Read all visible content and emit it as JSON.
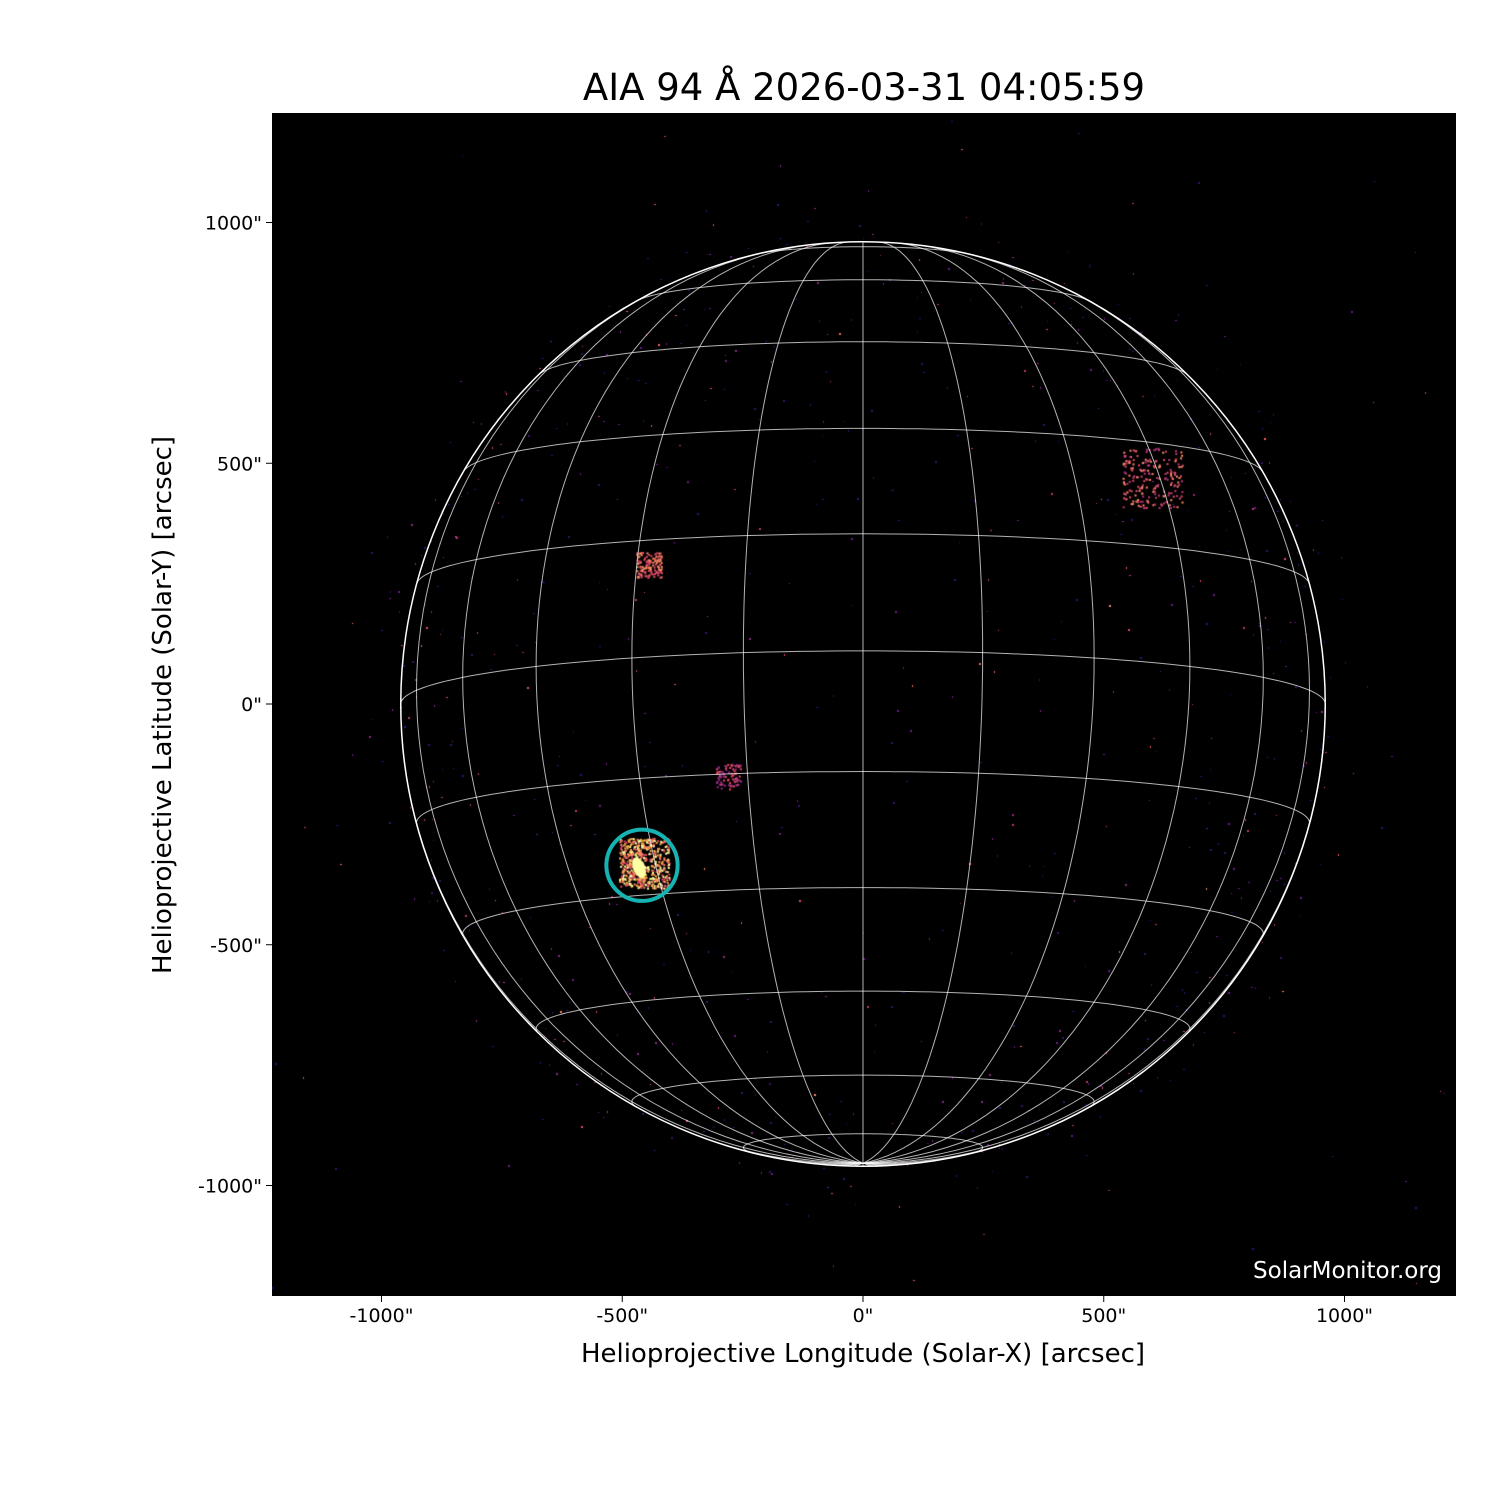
{
  "chart_data": {
    "type": "image",
    "title": "AIA 94 Å 2026-03-31 04:05:59",
    "xlabel": "Helioprojective Longitude (Solar-X) [arcsec]",
    "ylabel": "Helioprojective Latitude (Solar-Y) [arcsec]",
    "xlim": [
      -1230,
      1230
    ],
    "ylim": [
      -1230,
      1230
    ],
    "xticks": [
      {
        "value": -1000,
        "label": "-1000\""
      },
      {
        "value": -500,
        "label": "-500\""
      },
      {
        "value": 0,
        "label": "0\""
      },
      {
        "value": 500,
        "label": "500\""
      },
      {
        "value": 1000,
        "label": "1000\""
      }
    ],
    "yticks": [
      {
        "value": 1000,
        "label": "1000\""
      },
      {
        "value": 500,
        "label": "500\""
      },
      {
        "value": 0,
        "label": "0\""
      },
      {
        "value": -500,
        "label": "-500\""
      },
      {
        "value": -1000,
        "label": "-1000\""
      }
    ],
    "solar_radius_arcsec": 960,
    "grid": true,
    "grid_spacing_deg": 15,
    "colormap": "inferno-like (black-purple-orange-yellow)",
    "annotation_circle": {
      "x": -459,
      "y": -335,
      "radius": 74,
      "color": "#17b2b2"
    },
    "watermark": "SolarMonitor.org",
    "colors": {
      "background": "#000000",
      "grid": "#ffffff",
      "limb": "#ffffff"
    }
  }
}
